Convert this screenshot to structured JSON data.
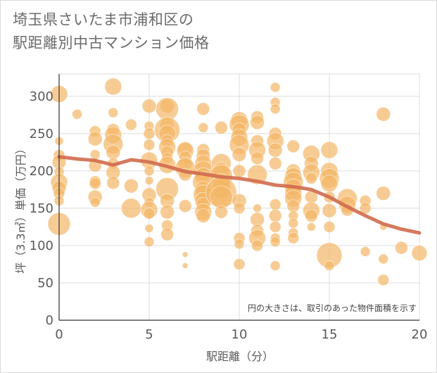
{
  "title_line1": "埼玉県さいたま市浦和区の",
  "title_line2": "駅距離別中古マンション価格",
  "chart_data": {
    "type": "scatter",
    "title": "埼玉県さいたま市浦和区の駅距離別中古マンション価格",
    "xlabel": "駅距離（分）",
    "ylabel": "坪（3.3㎡）単価（万円）",
    "xlim": [
      0,
      20
    ],
    "ylim": [
      0,
      330
    ],
    "xticks": [
      "0",
      "5",
      "10",
      "15",
      "20"
    ],
    "yticks": [
      "0",
      "50",
      "100",
      "150",
      "200",
      "250",
      "300"
    ],
    "grid": true,
    "note": "円の大きさは、取引のあった物件面積を示す",
    "colors": {
      "bubble": "#f3b766",
      "trend": "#d06a4e"
    },
    "points": [
      {
        "x": 0,
        "y": 303,
        "s": 12
      },
      {
        "x": 0,
        "y": 240,
        "s": 6
      },
      {
        "x": 0,
        "y": 221,
        "s": 8
      },
      {
        "x": 0,
        "y": 212,
        "s": 10
      },
      {
        "x": 0,
        "y": 199,
        "s": 7
      },
      {
        "x": 0,
        "y": 185,
        "s": 12
      },
      {
        "x": 0,
        "y": 177,
        "s": 10
      },
      {
        "x": 0,
        "y": 170,
        "s": 8
      },
      {
        "x": 0,
        "y": 160,
        "s": 7
      },
      {
        "x": 0,
        "y": 129,
        "s": 16
      },
      {
        "x": 1,
        "y": 276,
        "s": 7
      },
      {
        "x": 2,
        "y": 253,
        "s": 8
      },
      {
        "x": 2,
        "y": 243,
        "s": 10
      },
      {
        "x": 2,
        "y": 222,
        "s": 7
      },
      {
        "x": 2,
        "y": 207,
        "s": 9
      },
      {
        "x": 2,
        "y": 186,
        "s": 8
      },
      {
        "x": 2,
        "y": 183,
        "s": 8
      },
      {
        "x": 2,
        "y": 165,
        "s": 10
      },
      {
        "x": 2,
        "y": 158,
        "s": 7
      },
      {
        "x": 3,
        "y": 313,
        "s": 12
      },
      {
        "x": 3,
        "y": 278,
        "s": 7
      },
      {
        "x": 3,
        "y": 255,
        "s": 9
      },
      {
        "x": 3,
        "y": 248,
        "s": 12
      },
      {
        "x": 3,
        "y": 236,
        "s": 14
      },
      {
        "x": 3,
        "y": 225,
        "s": 10
      },
      {
        "x": 3,
        "y": 210,
        "s": 8
      },
      {
        "x": 3,
        "y": 198,
        "s": 10
      },
      {
        "x": 3,
        "y": 184,
        "s": 9
      },
      {
        "x": 4,
        "y": 262,
        "s": 8
      },
      {
        "x": 4,
        "y": 180,
        "s": 10
      },
      {
        "x": 4,
        "y": 150,
        "s": 14
      },
      {
        "x": 5,
        "y": 287,
        "s": 10
      },
      {
        "x": 5,
        "y": 260,
        "s": 7
      },
      {
        "x": 5,
        "y": 250,
        "s": 8
      },
      {
        "x": 5,
        "y": 235,
        "s": 8
      },
      {
        "x": 5,
        "y": 214,
        "s": 12
      },
      {
        "x": 5,
        "y": 200,
        "s": 7
      },
      {
        "x": 5,
        "y": 187,
        "s": 6
      },
      {
        "x": 5,
        "y": 168,
        "s": 10
      },
      {
        "x": 5,
        "y": 158,
        "s": 7
      },
      {
        "x": 5,
        "y": 148,
        "s": 12
      },
      {
        "x": 5,
        "y": 143,
        "s": 8
      },
      {
        "x": 5,
        "y": 123,
        "s": 6
      },
      {
        "x": 5,
        "y": 105,
        "s": 7
      },
      {
        "x": 6,
        "y": 287,
        "s": 10
      },
      {
        "x": 6,
        "y": 283,
        "s": 16
      },
      {
        "x": 6,
        "y": 262,
        "s": 10
      },
      {
        "x": 6,
        "y": 255,
        "s": 18
      },
      {
        "x": 6,
        "y": 250,
        "s": 12
      },
      {
        "x": 6,
        "y": 240,
        "s": 9
      },
      {
        "x": 6,
        "y": 232,
        "s": 12
      },
      {
        "x": 6,
        "y": 225,
        "s": 9
      },
      {
        "x": 6,
        "y": 217,
        "s": 8
      },
      {
        "x": 6,
        "y": 208,
        "s": 12
      },
      {
        "x": 6,
        "y": 176,
        "s": 16
      },
      {
        "x": 6,
        "y": 160,
        "s": 10
      },
      {
        "x": 6,
        "y": 145,
        "s": 10
      },
      {
        "x": 6,
        "y": 127,
        "s": 8
      },
      {
        "x": 6,
        "y": 115,
        "s": 9
      },
      {
        "x": 7,
        "y": 230,
        "s": 10
      },
      {
        "x": 7,
        "y": 227,
        "s": 12
      },
      {
        "x": 7,
        "y": 218,
        "s": 9
      },
      {
        "x": 7,
        "y": 210,
        "s": 10
      },
      {
        "x": 7,
        "y": 204,
        "s": 14
      },
      {
        "x": 7,
        "y": 195,
        "s": 9
      },
      {
        "x": 7,
        "y": 153,
        "s": 9
      },
      {
        "x": 7,
        "y": 88,
        "s": 4
      },
      {
        "x": 7,
        "y": 73,
        "s": 4
      },
      {
        "x": 8,
        "y": 283,
        "s": 9
      },
      {
        "x": 8,
        "y": 258,
        "s": 7
      },
      {
        "x": 8,
        "y": 228,
        "s": 9
      },
      {
        "x": 8,
        "y": 220,
        "s": 10
      },
      {
        "x": 8,
        "y": 210,
        "s": 12
      },
      {
        "x": 8,
        "y": 200,
        "s": 14
      },
      {
        "x": 8,
        "y": 193,
        "s": 12
      },
      {
        "x": 8,
        "y": 185,
        "s": 15
      },
      {
        "x": 8,
        "y": 175,
        "s": 12
      },
      {
        "x": 8,
        "y": 168,
        "s": 14
      },
      {
        "x": 8,
        "y": 160,
        "s": 12
      },
      {
        "x": 8,
        "y": 155,
        "s": 10
      },
      {
        "x": 8,
        "y": 145,
        "s": 12
      },
      {
        "x": 8,
        "y": 140,
        "s": 10
      },
      {
        "x": 9,
        "y": 258,
        "s": 9
      },
      {
        "x": 9,
        "y": 210,
        "s": 14
      },
      {
        "x": 9,
        "y": 200,
        "s": 12
      },
      {
        "x": 9,
        "y": 193,
        "s": 16
      },
      {
        "x": 9,
        "y": 185,
        "s": 12
      },
      {
        "x": 9,
        "y": 176,
        "s": 14
      },
      {
        "x": 9,
        "y": 171,
        "s": 22
      },
      {
        "x": 9,
        "y": 165,
        "s": 16
      },
      {
        "x": 9,
        "y": 145,
        "s": 9
      },
      {
        "x": 10,
        "y": 268,
        "s": 12
      },
      {
        "x": 10,
        "y": 262,
        "s": 14
      },
      {
        "x": 10,
        "y": 255,
        "s": 10
      },
      {
        "x": 10,
        "y": 245,
        "s": 12
      },
      {
        "x": 10,
        "y": 235,
        "s": 14
      },
      {
        "x": 10,
        "y": 222,
        "s": 10
      },
      {
        "x": 10,
        "y": 200,
        "s": 9
      },
      {
        "x": 10,
        "y": 160,
        "s": 10
      },
      {
        "x": 10,
        "y": 150,
        "s": 8
      },
      {
        "x": 10,
        "y": 110,
        "s": 8
      },
      {
        "x": 10,
        "y": 102,
        "s": 7
      },
      {
        "x": 10,
        "y": 75,
        "s": 8
      },
      {
        "x": 11,
        "y": 272,
        "s": 9
      },
      {
        "x": 11,
        "y": 265,
        "s": 10
      },
      {
        "x": 11,
        "y": 240,
        "s": 9
      },
      {
        "x": 11,
        "y": 228,
        "s": 12
      },
      {
        "x": 11,
        "y": 217,
        "s": 9
      },
      {
        "x": 11,
        "y": 195,
        "s": 14
      },
      {
        "x": 11,
        "y": 150,
        "s": 6
      },
      {
        "x": 11,
        "y": 135,
        "s": 10
      },
      {
        "x": 11,
        "y": 120,
        "s": 9
      },
      {
        "x": 11,
        "y": 110,
        "s": 12
      },
      {
        "x": 11,
        "y": 100,
        "s": 8
      },
      {
        "x": 12,
        "y": 312,
        "s": 7
      },
      {
        "x": 12,
        "y": 292,
        "s": 7
      },
      {
        "x": 12,
        "y": 283,
        "s": 7
      },
      {
        "x": 12,
        "y": 250,
        "s": 9
      },
      {
        "x": 12,
        "y": 240,
        "s": 12
      },
      {
        "x": 12,
        "y": 228,
        "s": 10
      },
      {
        "x": 12,
        "y": 210,
        "s": 9
      },
      {
        "x": 12,
        "y": 155,
        "s": 8
      },
      {
        "x": 12,
        "y": 140,
        "s": 9
      },
      {
        "x": 12,
        "y": 125,
        "s": 8
      },
      {
        "x": 12,
        "y": 110,
        "s": 7
      },
      {
        "x": 12,
        "y": 105,
        "s": 7
      },
      {
        "x": 12,
        "y": 73,
        "s": 7
      },
      {
        "x": 13,
        "y": 233,
        "s": 9
      },
      {
        "x": 13,
        "y": 200,
        "s": 10
      },
      {
        "x": 13,
        "y": 193,
        "s": 12
      },
      {
        "x": 13,
        "y": 185,
        "s": 14
      },
      {
        "x": 13,
        "y": 178,
        "s": 12
      },
      {
        "x": 13,
        "y": 170,
        "s": 12
      },
      {
        "x": 13,
        "y": 163,
        "s": 12
      },
      {
        "x": 13,
        "y": 153,
        "s": 9
      },
      {
        "x": 13,
        "y": 140,
        "s": 7
      },
      {
        "x": 13,
        "y": 130,
        "s": 7
      },
      {
        "x": 13,
        "y": 117,
        "s": 7
      },
      {
        "x": 13,
        "y": 110,
        "s": 8
      },
      {
        "x": 14,
        "y": 223,
        "s": 12
      },
      {
        "x": 14,
        "y": 210,
        "s": 10
      },
      {
        "x": 14,
        "y": 198,
        "s": 12
      },
      {
        "x": 14,
        "y": 190,
        "s": 8
      },
      {
        "x": 14,
        "y": 165,
        "s": 9
      },
      {
        "x": 14,
        "y": 147,
        "s": 12
      },
      {
        "x": 14,
        "y": 140,
        "s": 9
      },
      {
        "x": 14,
        "y": 125,
        "s": 6
      },
      {
        "x": 15,
        "y": 228,
        "s": 12
      },
      {
        "x": 15,
        "y": 200,
        "s": 12
      },
      {
        "x": 15,
        "y": 190,
        "s": 14
      },
      {
        "x": 15,
        "y": 183,
        "s": 12
      },
      {
        "x": 15,
        "y": 165,
        "s": 8
      },
      {
        "x": 15,
        "y": 147,
        "s": 10
      },
      {
        "x": 15,
        "y": 125,
        "s": 8
      },
      {
        "x": 15,
        "y": 87,
        "s": 18
      },
      {
        "x": 15,
        "y": 73,
        "s": 7
      },
      {
        "x": 16,
        "y": 163,
        "s": 14
      },
      {
        "x": 16,
        "y": 155,
        "s": 12
      },
      {
        "x": 16,
        "y": 148,
        "s": 9
      },
      {
        "x": 17,
        "y": 160,
        "s": 8
      },
      {
        "x": 17,
        "y": 150,
        "s": 8
      },
      {
        "x": 17,
        "y": 92,
        "s": 7
      },
      {
        "x": 18,
        "y": 276,
        "s": 10
      },
      {
        "x": 18,
        "y": 170,
        "s": 10
      },
      {
        "x": 18,
        "y": 125,
        "s": 5
      },
      {
        "x": 18,
        "y": 82,
        "s": 7
      },
      {
        "x": 18,
        "y": 54,
        "s": 8
      },
      {
        "x": 19,
        "y": 97,
        "s": 9
      },
      {
        "x": 20,
        "y": 90,
        "s": 11
      }
    ],
    "trend": {
      "x": [
        0,
        1,
        2,
        3,
        4,
        5,
        6,
        7,
        8,
        9,
        10,
        11,
        12,
        13,
        14,
        15,
        16,
        17,
        18,
        19,
        20
      ],
      "y": [
        219,
        216,
        214,
        208,
        215,
        212,
        206,
        199,
        196,
        192,
        190,
        186,
        181,
        179,
        175,
        165,
        152,
        140,
        129,
        122,
        117
      ]
    }
  }
}
